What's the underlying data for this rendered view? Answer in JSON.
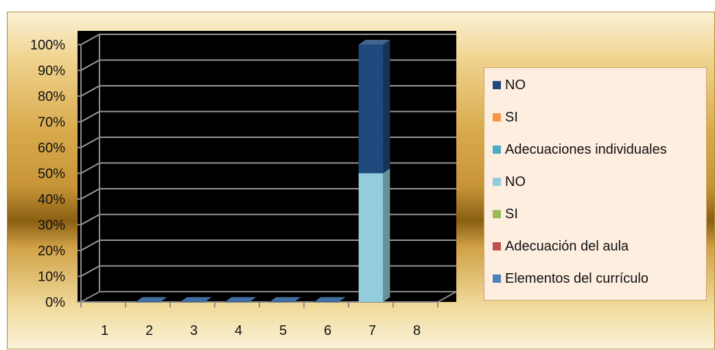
{
  "chart_data": {
    "type": "bar",
    "stacked": true,
    "percent_stacked": true,
    "three_d": true,
    "categories": [
      "1",
      "2",
      "3",
      "4",
      "5",
      "6",
      "7",
      "8"
    ],
    "y_tick_labels": [
      "0%",
      "10%",
      "20%",
      "30%",
      "40%",
      "50%",
      "60%",
      "70%",
      "80%",
      "90%",
      "100%"
    ],
    "ylim": [
      0,
      100
    ],
    "grid": true,
    "legend_position": "right",
    "series": [
      {
        "name": "Elementos del currículo",
        "color": "#4f81bd",
        "values": [
          0,
          0,
          0,
          0,
          0,
          0,
          0,
          0
        ]
      },
      {
        "name": "Adecuación del aula",
        "color": "#c0504d",
        "values": [
          0,
          0,
          0,
          0,
          0,
          0,
          0,
          0
        ]
      },
      {
        "name": "SI",
        "color": "#9bbb59",
        "values": [
          0,
          0,
          0,
          0,
          0,
          0,
          0,
          0
        ]
      },
      {
        "name": "NO",
        "color": "#93cddd",
        "values": [
          0,
          0,
          0,
          0,
          0,
          0,
          50,
          0
        ]
      },
      {
        "name": "Adecuaciones individuales",
        "color": "#4bacc6",
        "values": [
          0,
          0,
          0,
          0,
          0,
          0,
          0,
          0
        ]
      },
      {
        "name": "SI",
        "color": "#f79646",
        "values": [
          0,
          0,
          0,
          0,
          0,
          0,
          0,
          0
        ]
      },
      {
        "name": "NO",
        "color": "#1f497d",
        "values": [
          0,
          0,
          0,
          0,
          0,
          0,
          50,
          0
        ]
      }
    ],
    "legend_order": [
      6,
      5,
      4,
      3,
      2,
      1,
      0
    ]
  }
}
